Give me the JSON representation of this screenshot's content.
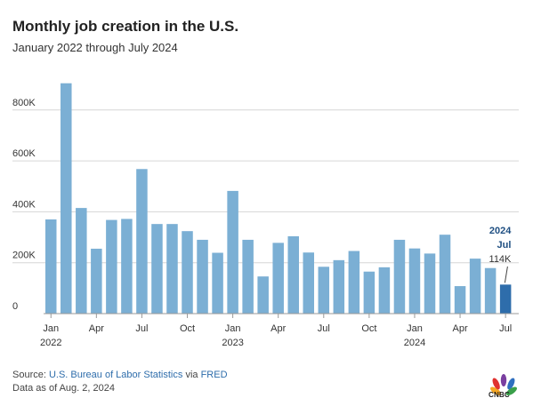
{
  "title": "Monthly job creation in the U.S.",
  "subtitle": "January 2022 through July 2024",
  "footer": {
    "source_prefix": "Source: ",
    "source_name": "U.S. Bureau of Labor Statistics",
    "source_via": " via ",
    "source_fred": "FRED",
    "note": "Data as of Aug. 2, 2024",
    "logo_text": "CNBC"
  },
  "colors": {
    "bar": "#7bafd4",
    "highlight_bar": "#2e6dab",
    "annotation_year": "#1f4f82",
    "grid": "#d6d6d6",
    "text": "#333333"
  },
  "chart_data": {
    "type": "bar",
    "title": "Monthly job creation in the U.S.",
    "subtitle": "January 2022 through July 2024",
    "xlabel": "",
    "ylabel": "",
    "ylim": [
      0,
      900
    ],
    "y_unit": "thousands",
    "y_ticks": [
      {
        "value": 0,
        "label": "0"
      },
      {
        "value": 200,
        "label": "200K"
      },
      {
        "value": 400,
        "label": "400K"
      },
      {
        "value": 600,
        "label": "600K"
      },
      {
        "value": 800,
        "label": "800K"
      }
    ],
    "categories": [
      "2022-01",
      "2022-02",
      "2022-03",
      "2022-04",
      "2022-05",
      "2022-06",
      "2022-07",
      "2022-08",
      "2022-09",
      "2022-10",
      "2022-11",
      "2022-12",
      "2023-01",
      "2023-02",
      "2023-03",
      "2023-04",
      "2023-05",
      "2023-06",
      "2023-07",
      "2023-08",
      "2023-09",
      "2023-10",
      "2023-11",
      "2023-12",
      "2024-01",
      "2024-02",
      "2024-03",
      "2024-04",
      "2024-05",
      "2024-06",
      "2024-07"
    ],
    "values": [
      370,
      905,
      415,
      255,
      368,
      372,
      568,
      352,
      352,
      324,
      290,
      239,
      482,
      290,
      146,
      278,
      304,
      240,
      184,
      210,
      246,
      165,
      182,
      290,
      256,
      236,
      310,
      108,
      216,
      179,
      114
    ],
    "x_tick_labels": [
      {
        "index": 0,
        "label": "Jan",
        "year": "2022"
      },
      {
        "index": 3,
        "label": "Apr",
        "year": ""
      },
      {
        "index": 6,
        "label": "Jul",
        "year": ""
      },
      {
        "index": 9,
        "label": "Oct",
        "year": ""
      },
      {
        "index": 12,
        "label": "Jan",
        "year": "2023"
      },
      {
        "index": 15,
        "label": "Apr",
        "year": ""
      },
      {
        "index": 18,
        "label": "Jul",
        "year": ""
      },
      {
        "index": 21,
        "label": "Oct",
        "year": ""
      },
      {
        "index": 24,
        "label": "Jan",
        "year": "2024"
      },
      {
        "index": 27,
        "label": "Apr",
        "year": ""
      },
      {
        "index": 30,
        "label": "Jul",
        "year": ""
      }
    ],
    "highlight_index": 30,
    "annotation": {
      "year": "2024",
      "month": "Jul",
      "value_label": "114K"
    },
    "grid": true,
    "legend": "none"
  }
}
